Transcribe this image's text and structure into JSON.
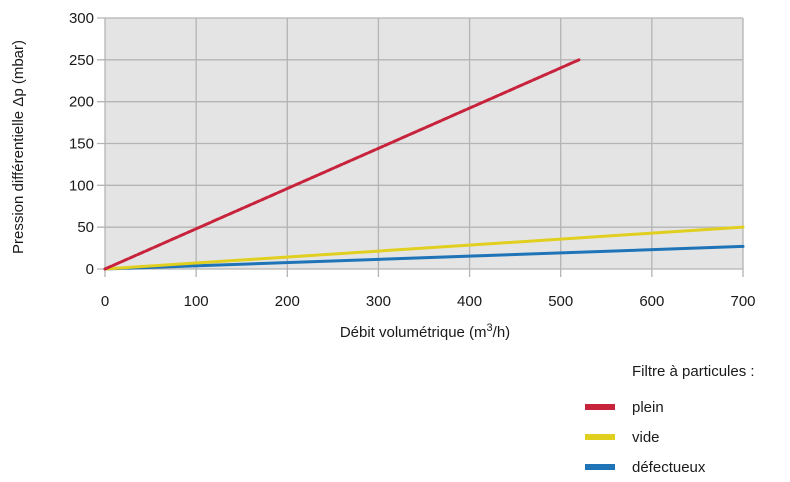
{
  "chart_data": {
    "type": "line",
    "xlabel": "Débit volumétrique (m",
    "xlabel_sup": "3",
    "xlabel_tail": "/h)",
    "ylabel": "Pression différentielle Δp (mbar)",
    "xlim": [
      0,
      700
    ],
    "ylim": [
      0,
      300
    ],
    "x_ticks": [
      "0",
      "100",
      "200",
      "300",
      "400",
      "500",
      "600",
      "700"
    ],
    "y_ticks": [
      "0",
      "50",
      "100",
      "150",
      "200",
      "250",
      "300"
    ],
    "grid": true,
    "legend_title": "Filtre à particules :",
    "legend_position": "bottom-right",
    "series": [
      {
        "name": "plein",
        "color": "#c8233c",
        "dashed": true,
        "x": [
          0,
          520
        ],
        "y": [
          0,
          250
        ]
      },
      {
        "name": "vide",
        "color": "#e0cf1f",
        "dashed": false,
        "x": [
          0,
          700
        ],
        "y": [
          0,
          50
        ]
      },
      {
        "name": "défectueux",
        "color": "#1f74b8",
        "dashed": false,
        "x": [
          0,
          700
        ],
        "y": [
          0,
          27
        ]
      }
    ]
  }
}
